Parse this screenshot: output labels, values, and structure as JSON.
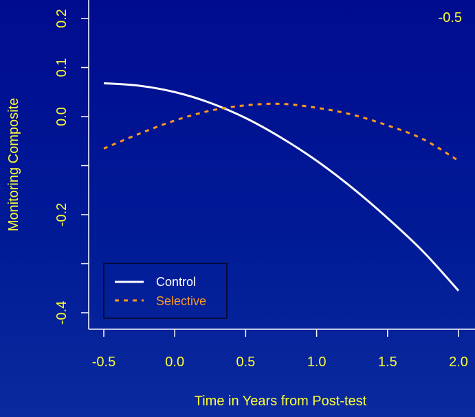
{
  "chart_data": {
    "type": "line",
    "panel_label": "-0.5",
    "xlabel": "Time in Years from Post-test",
    "ylabel": "Monitoring Composite",
    "xlim": [
      -0.5,
      2.0
    ],
    "ylim": [
      -0.4,
      0.2
    ],
    "xticks": [
      -0.5,
      0.0,
      0.5,
      1.0,
      1.5,
      2.0
    ],
    "xtick_labels": [
      "-0.5",
      "0.0",
      "0.5",
      "1.0",
      "1.5",
      "2.0"
    ],
    "yticks": [
      -0.4,
      -0.3,
      -0.2,
      -0.1,
      0.0,
      0.1,
      0.2
    ],
    "ytick_labels": [
      "-0.4",
      "",
      "-0.2",
      "",
      "0.0",
      "0.1",
      "0.2"
    ],
    "legend_position": "bottom-left",
    "x": [
      -0.5,
      -0.25,
      0.0,
      0.25,
      0.5,
      0.75,
      1.0,
      1.25,
      1.5,
      1.75,
      2.0
    ],
    "series": [
      {
        "name": "Control",
        "color": "#ffffff",
        "style": "solid",
        "values": [
          0.068,
          0.063,
          0.05,
          0.028,
          -0.003,
          -0.043,
          -0.09,
          -0.145,
          -0.207,
          -0.275,
          -0.355
        ]
      },
      {
        "name": "Selective",
        "color": "#ff9a1a",
        "style": "dashed",
        "values": [
          -0.065,
          -0.035,
          -0.008,
          0.012,
          0.023,
          0.026,
          0.018,
          0.004,
          -0.018,
          -0.046,
          -0.09
        ]
      }
    ]
  }
}
